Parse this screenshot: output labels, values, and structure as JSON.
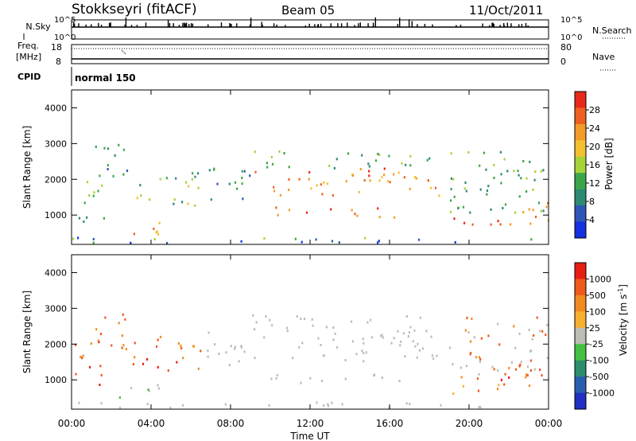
{
  "header": {
    "station": "Stokkseyri (fitACF)",
    "beam": "Beam 05",
    "date": "11/Oct/2011"
  },
  "left_labels": {
    "nsky": "N.Sky",
    "freq": "Freq.",
    "freq_unit": "[MHz]",
    "cpid": "CPID"
  },
  "right_labels": {
    "nsearch": "N.Search",
    "nave": "Nave"
  },
  "cpid_text": "normal 150",
  "chart_data": [
    {
      "type": "line",
      "name": "noise",
      "ylabel_ticks": [
        "10^5",
        "10^0"
      ],
      "right_ticks": [
        "10^5",
        "10^0"
      ],
      "series": [
        {
          "name": "N.Sky",
          "style": "solid"
        },
        {
          "name": "N.Search",
          "style": "dotted"
        }
      ]
    },
    {
      "type": "line",
      "name": "frequency",
      "left_ticks": [
        "18",
        "8"
      ],
      "right_ticks": [
        "80",
        "0"
      ],
      "series": [
        {
          "name": "Freq",
          "style": "solid",
          "values_mhz": [
            9.0,
            9.0
          ]
        },
        {
          "name": "Nave",
          "style": "dotted",
          "values": [
            70,
            70
          ]
        }
      ]
    },
    {
      "type": "heatmap",
      "name": "power",
      "ylabel": "Slant Range [km]",
      "yticks": [
        "1000",
        "2000",
        "3000",
        "4000"
      ],
      "ylim_km": [
        180,
        4500
      ],
      "x_range_hours": [
        0,
        24
      ],
      "colorbar": {
        "label": "Power [dB]",
        "ticks": [
          "4",
          "8",
          "12",
          "16",
          "20",
          "24",
          "28"
        ],
        "colors": [
          "#1530e0",
          "#2d56b8",
          "#2e8a72",
          "#3aa64a",
          "#a8d23a",
          "#f2c030",
          "#f49a28",
          "#ee6020",
          "#e8281a"
        ]
      }
    },
    {
      "type": "heatmap",
      "name": "velocity",
      "ylabel": "Slant Range [km]",
      "yticks": [
        "1000",
        "2000",
        "3000",
        "4000"
      ],
      "ylim_km": [
        180,
        4500
      ],
      "x_range_hours": [
        0,
        24
      ],
      "xlabel": "Time UT",
      "xticks": [
        "00:00",
        "04:00",
        "08:00",
        "12:00",
        "16:00",
        "20:00",
        "00:00"
      ],
      "colorbar": {
        "label": "Velocity [m s",
        "label_sup": "-1",
        "label_close": "]",
        "ticks": [
          "1000",
          "500",
          "100",
          "25",
          "-25",
          "-100",
          "-500",
          "-1000"
        ],
        "colors": [
          "#2030c0",
          "#2a5fb0",
          "#2d8d6c",
          "#44c044",
          "#bdbdb5",
          "#f6b030",
          "#f28a20",
          "#ee5a1a",
          "#e61e14"
        ]
      }
    }
  ]
}
